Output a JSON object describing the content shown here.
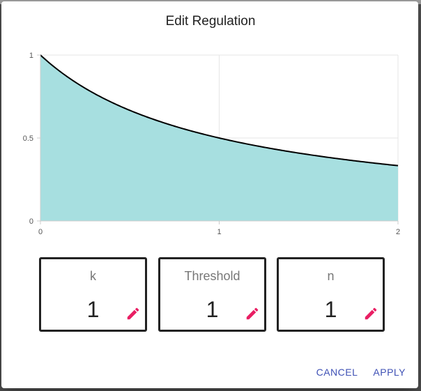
{
  "dialog": {
    "title": "Edit Regulation"
  },
  "chart_data": {
    "type": "area",
    "function": "1/(1+x)",
    "x": [
      0,
      0.1,
      0.2,
      0.3,
      0.4,
      0.5,
      0.6,
      0.7,
      0.8,
      0.9,
      1.0,
      1.2,
      1.4,
      1.6,
      1.8,
      2.0
    ],
    "y": [
      1,
      0.909,
      0.833,
      0.769,
      0.714,
      0.667,
      0.625,
      0.588,
      0.556,
      0.526,
      0.5,
      0.455,
      0.417,
      0.385,
      0.357,
      0.333
    ],
    "xlim": [
      0,
      2
    ],
    "ylim": [
      0,
      1
    ],
    "x_ticks": [
      "0",
      "1",
      "2"
    ],
    "y_ticks": [
      "1",
      "0.5",
      "0"
    ],
    "grid": true,
    "fill_color": "#a7dfe0",
    "line_color": "#000000"
  },
  "params": [
    {
      "label": "k",
      "value": "1"
    },
    {
      "label": "Threshold",
      "value": "1"
    },
    {
      "label": "n",
      "value": "1"
    }
  ],
  "icons": {
    "edit": "pencil-icon"
  },
  "accent_color": "#e91e63",
  "actions": {
    "cancel": "CANCEL",
    "apply": "APPLY"
  }
}
